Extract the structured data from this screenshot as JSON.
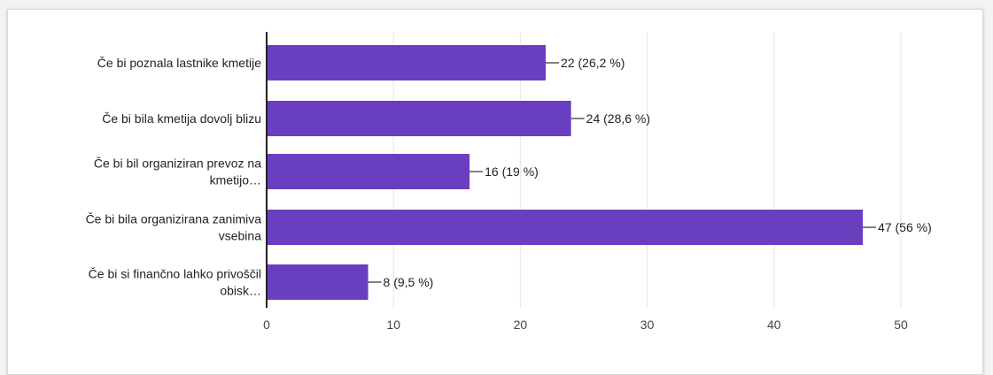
{
  "chart_data": {
    "type": "bar",
    "orientation": "horizontal",
    "categories": [
      [
        "Če bi poznala lastnike kmetije"
      ],
      [
        "Če bi bila kmetija dovolj blizu"
      ],
      [
        "Če bi bil organiziran prevoz na",
        "kmetijo…"
      ],
      [
        "Če bi bila organizirana zanimiva",
        "vsebina"
      ],
      [
        "Če bi si finančno lahko privoščil",
        "obisk…"
      ]
    ],
    "values": [
      22,
      24,
      16,
      47,
      8
    ],
    "data_labels": [
      "22 (26,2 %)",
      "24 (28,6 %)",
      "16 (19 %)",
      "47 (56 %)",
      "8 (9,5 %)"
    ],
    "xlim": [
      0,
      50
    ],
    "xticks": [
      "0",
      "10",
      "20",
      "30",
      "40",
      "50"
    ],
    "grid": true,
    "colors": {
      "bar": "#6a3fbf",
      "grid": "#e6e6e6",
      "axis": "#222222",
      "leader": "#555555"
    }
  }
}
